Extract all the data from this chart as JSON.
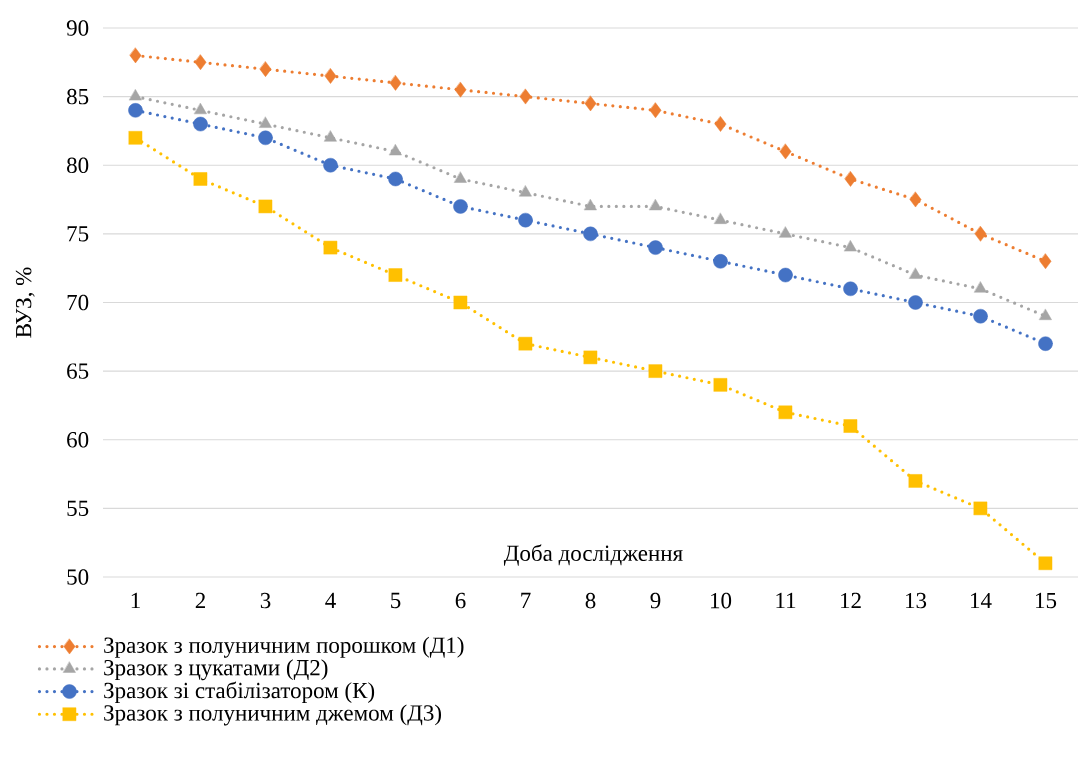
{
  "chart_data": {
    "type": "line",
    "xlabel": "Доба дослідження",
    "ylabel": "ВУЗ, %",
    "categories": [
      "1",
      "2",
      "3",
      "4",
      "5",
      "6",
      "7",
      "8",
      "9",
      "10",
      "11",
      "12",
      "13",
      "14",
      "15"
    ],
    "series": [
      {
        "name": "Зразок з полуничним порошком (Д1)",
        "color": "#ed7d31",
        "marker": "diamond",
        "values": [
          88,
          87.5,
          87,
          86.5,
          86,
          85.5,
          85,
          84.5,
          84,
          83,
          81,
          79,
          77.5,
          75,
          73
        ]
      },
      {
        "name": "Зразок з цукатами (Д2)",
        "color": "#a5a5a5",
        "marker": "triangle",
        "values": [
          85,
          84,
          83,
          82,
          81,
          79,
          78,
          77,
          77,
          76,
          75,
          74,
          72,
          71,
          69
        ]
      },
      {
        "name": "Зразок зі стабілізатором (К)",
        "color": "#4472c4",
        "marker": "circle",
        "values": [
          84,
          83,
          82,
          80,
          79,
          77,
          76,
          75,
          74,
          73,
          72,
          71,
          70,
          69,
          67
        ]
      },
      {
        "name": "Зразок з полуничним джемом (Д3)",
        "color": "#ffc000",
        "marker": "square",
        "values": [
          82,
          79,
          77,
          74,
          72,
          70,
          67,
          66,
          65,
          64,
          62,
          61,
          57,
          55,
          51
        ]
      }
    ],
    "ylim": [
      50,
      90
    ],
    "yticks": [
      50,
      55,
      60,
      65,
      70,
      75,
      80,
      85,
      90
    ],
    "grid": "y",
    "legend": "bottom",
    "line_style": "dotted"
  }
}
